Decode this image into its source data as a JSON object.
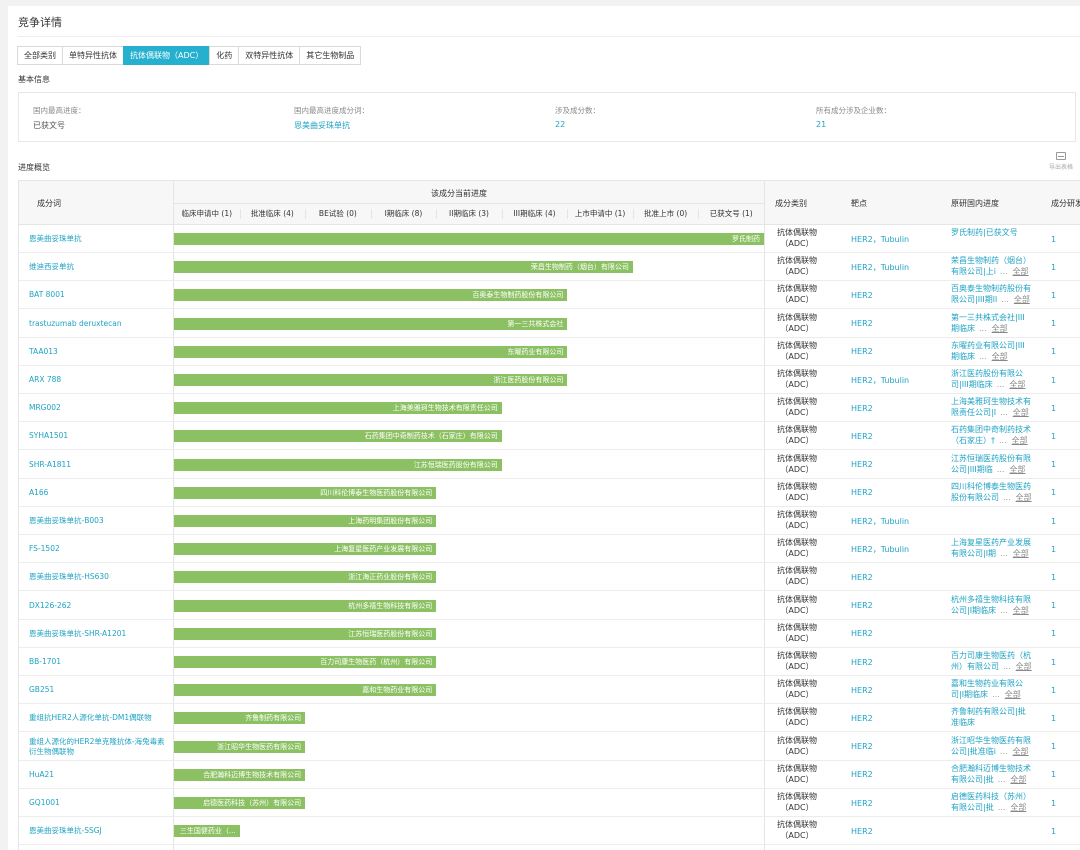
{
  "page_title": "竞争详情",
  "tabs": [
    "全部类别",
    "单特异性抗体",
    "抗体偶联物（ADC）",
    "化药",
    "双特异性抗体",
    "其它生物制品"
  ],
  "active_tab": 2,
  "basic_info": {
    "heading": "基本信息",
    "highest_stage_label": "国内最高进度：",
    "highest_stage_value": "已获文号",
    "top_ingredient_label": "国内最高进度成分词：",
    "top_ingredient_value": "恩美曲妥珠单抗",
    "ingredient_count_label": "涉及成分数：",
    "ingredient_count_value": "22",
    "company_count_label": "所有成分涉及企业数：",
    "company_count_value": "21"
  },
  "progress": {
    "heading": "进度概览",
    "export_label": "导出表格",
    "headers": {
      "ingredient": "成分词",
      "current_stage": "该成分当前进度",
      "category": "成分类别",
      "target": "靶点",
      "original_stage": "原研国内进度",
      "rd_count": "成分研发"
    },
    "stages": [
      "临床申请中 (1)",
      "批准临床 (4)",
      "BE试验 (0)",
      "I期临床 (8)",
      "II期临床 (3)",
      "III期临床 (4)",
      "上市申请中 (1)",
      "批准上市 (0)",
      "已获文号 (1)"
    ],
    "stage_index_meaning": "0=临床申请中 … 8=已获文号",
    "all_label": "全部",
    "more_label": "...",
    "rows": [
      {
        "name": "恩美曲妥珠单抗",
        "stage_index": 8,
        "company": "罗氏制药",
        "category": "抗体偶联物（ADC）",
        "target": "HER2，Tubulin",
        "orig_line1": "罗氏制药|已获文号",
        "orig_line2": "",
        "show_all": false,
        "count": "1"
      },
      {
        "name": "维迪西妥单抗",
        "stage_index": 6,
        "company": "荣昌生物制药（烟台）有限公司",
        "category": "抗体偶联物（ADC）",
        "target": "HER2，Tubulin",
        "orig_line1": "荣昌生物制药（烟台）",
        "orig_line2": "有限公司|上i",
        "show_all": true,
        "count": "1"
      },
      {
        "name": "BAT 8001",
        "stage_index": 5,
        "company": "百奥泰生物制药股份有限公司",
        "category": "抗体偶联物（ADC）",
        "target": "HER2",
        "orig_line1": "百奥泰生物制药股份有",
        "orig_line2": "限公司|III期ll",
        "show_all": true,
        "count": "1"
      },
      {
        "name": "trastuzumab deruxtecan",
        "stage_index": 5,
        "company": "第一三共株式会社",
        "category": "抗体偶联物（ADC）",
        "target": "HER2",
        "orig_line1": "第一三共株式会社|III",
        "orig_line2": "期临床",
        "show_all": true,
        "count": "1"
      },
      {
        "name": "TAA013",
        "stage_index": 5,
        "company": "东曜药业有限公司",
        "category": "抗体偶联物（ADC）",
        "target": "HER2",
        "orig_line1": "东曜药业有限公司|III",
        "orig_line2": "期临床",
        "show_all": true,
        "count": "1"
      },
      {
        "name": "ARX 788",
        "stage_index": 5,
        "company": "浙江医药股份有限公司",
        "category": "抗体偶联物（ADC）",
        "target": "HER2，Tubulin",
        "orig_line1": "浙江医药股份有限公",
        "orig_line2": "司|III期临床",
        "show_all": true,
        "count": "1"
      },
      {
        "name": "MRG002",
        "stage_index": 4,
        "company": "上海美雅珂生物技术有限责任公司",
        "category": "抗体偶联物（ADC）",
        "target": "HER2",
        "orig_line1": "上海美雅珂生物技术有",
        "orig_line2": "限责任公司|I",
        "show_all": true,
        "count": "1"
      },
      {
        "name": "SYHA1501",
        "stage_index": 4,
        "company": "石药集团中奇制药技术（石家庄）有限公司",
        "category": "抗体偶联物（ADC）",
        "target": "HER2",
        "orig_line1": "石药集团中奇制药技术",
        "orig_line2": "（石家庄）†",
        "show_all": true,
        "count": "1"
      },
      {
        "name": "SHR-A1811",
        "stage_index": 4,
        "company": "江苏恒瑞医药股份有限公司",
        "category": "抗体偶联物（ADC）",
        "target": "HER2",
        "orig_line1": "江苏恒瑞医药股份有限",
        "orig_line2": "公司|III期临",
        "show_all": true,
        "count": "1"
      },
      {
        "name": "A166",
        "stage_index": 3,
        "company": "四川科伦博泰生物医药股份有限公司",
        "category": "抗体偶联物（ADC）",
        "target": "HER2",
        "orig_line1": "四川科伦博泰生物医药",
        "orig_line2": "股份有限公司",
        "show_all": true,
        "count": "1"
      },
      {
        "name": "恩美曲妥珠单抗-B003",
        "stage_index": 3,
        "company": "上海药明集团股份有限公司",
        "category": "抗体偶联物（ADC）",
        "target": "HER2，Tubulin",
        "orig_line1": "",
        "orig_line2": "",
        "show_all": false,
        "count": "1"
      },
      {
        "name": "FS-1502",
        "stage_index": 3,
        "company": "上海复星医药产业发展有限公司",
        "category": "抗体偶联物（ADC）",
        "target": "HER2，Tubulin",
        "orig_line1": "上海复星医药产业发展",
        "orig_line2": "有限公司|I期",
        "show_all": true,
        "count": "1"
      },
      {
        "name": "恩美曲妥珠单抗-HS630",
        "stage_index": 3,
        "company": "浙江海正药业股份有限公司",
        "category": "抗体偶联物（ADC）",
        "target": "HER2",
        "orig_line1": "",
        "orig_line2": "",
        "show_all": false,
        "count": "1"
      },
      {
        "name": "DX126-262",
        "stage_index": 3,
        "company": "杭州多禧生物科技有限公司",
        "category": "抗体偶联物（ADC）",
        "target": "HER2",
        "orig_line1": "杭州多禧生物科技有限",
        "orig_line2": "公司|I期临床",
        "show_all": true,
        "count": "1"
      },
      {
        "name": "恩美曲妥珠单抗-SHR-A1201",
        "stage_index": 3,
        "company": "江苏恒瑞医药股份有限公司",
        "category": "抗体偶联物（ADC）",
        "target": "HER2",
        "orig_line1": "",
        "orig_line2": "",
        "show_all": false,
        "count": "1"
      },
      {
        "name": "BB-1701",
        "stage_index": 3,
        "company": "百力司康生物医药（杭州）有限公司",
        "category": "抗体偶联物（ADC）",
        "target": "HER2",
        "orig_line1": "百力司康生物医药（杭",
        "orig_line2": "州）有限公司",
        "show_all": true,
        "count": "1"
      },
      {
        "name": "GB251",
        "stage_index": 3,
        "company": "嘉和生物药业有限公司",
        "category": "抗体偶联物（ADC）",
        "target": "HER2",
        "orig_line1": "嘉和生物药业有限公",
        "orig_line2": "司|I期临床",
        "show_all": true,
        "count": "1"
      },
      {
        "name": "重组抗HER2人源化单抗-DM1偶联物",
        "stage_index": 1,
        "company": "齐鲁制药有限公司",
        "category": "抗体偶联物（ADC）",
        "target": "HER2",
        "orig_line1": "齐鲁制药有限公司|批",
        "orig_line2": "准临床",
        "show_all": false,
        "count": "1"
      },
      {
        "name": "重组人源化的HER2单克隆抗体-海兔毒素衍生物偶联物",
        "stage_index": 1,
        "company": "浙江昭华生物医药有限公司",
        "category": "抗体偶联物（ADC）",
        "target": "HER2",
        "orig_line1": "浙江昭华生物医药有限",
        "orig_line2": "公司|批准临i",
        "show_all": true,
        "count": "1"
      },
      {
        "name": "HuA21",
        "stage_index": 1,
        "company": "合肥瀚科迈博生物技术有限公司",
        "category": "抗体偶联物（ADC）",
        "target": "HER2",
        "orig_line1": "合肥瀚科迈博生物技术",
        "orig_line2": "有限公司|批",
        "show_all": true,
        "count": "1"
      },
      {
        "name": "GQ1001",
        "stage_index": 1,
        "company": "启德医药科技（苏州）有限公司",
        "category": "抗体偶联物（ADC）",
        "target": "HER2",
        "orig_line1": "启德医药科技（苏州）",
        "orig_line2": "有限公司|批",
        "show_all": true,
        "count": "1"
      },
      {
        "name": "恩美曲妥珠单抗-SSGJ",
        "stage_index": 0,
        "company": "三生国健药业（...",
        "category": "抗体偶联物（ADC）",
        "target": "HER2",
        "orig_line1": "",
        "orig_line2": "",
        "show_all": false,
        "count": "1"
      }
    ]
  }
}
